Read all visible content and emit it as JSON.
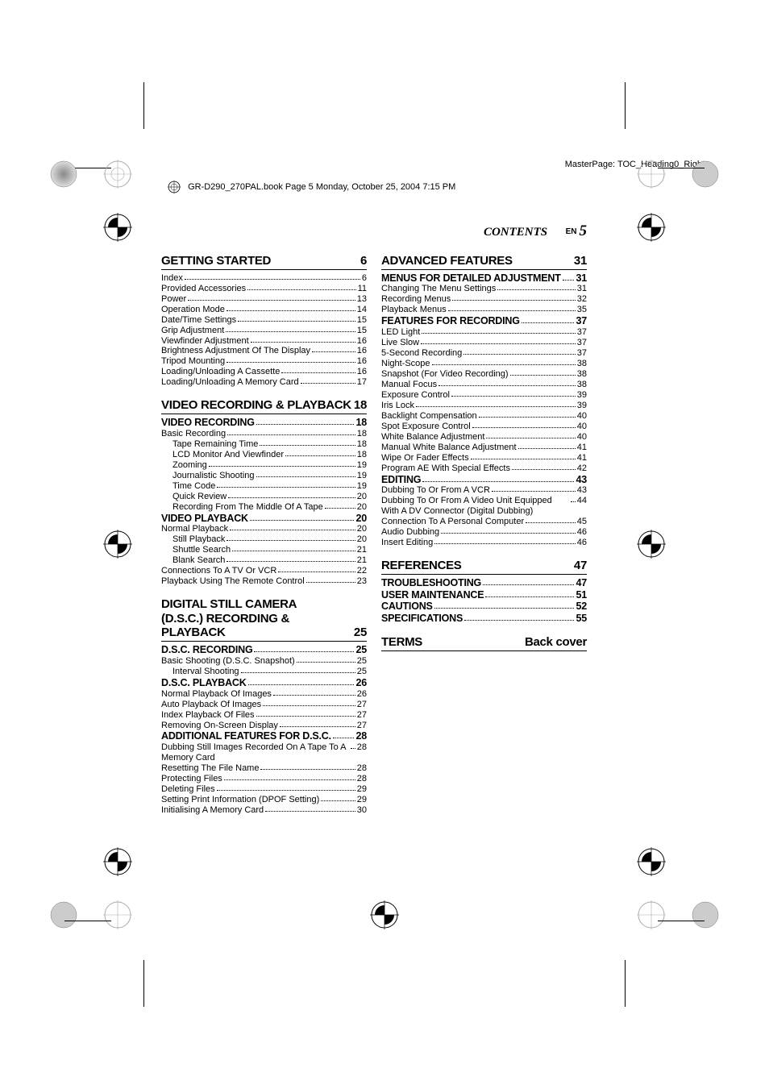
{
  "meta": {
    "masterpage": "MasterPage: TOC_Heading0_Right",
    "book_info": "GR-D290_270PAL.book  Page 5  Monday, October 25, 2004  7:15 PM"
  },
  "header": {
    "contents_label": "CONTENTS",
    "en": "EN",
    "page": "5"
  },
  "left": {
    "sections": [
      {
        "title": "GETTING STARTED",
        "page": "6",
        "subs": [],
        "entries": [
          {
            "label": "Index",
            "page": "6",
            "indent": 0
          },
          {
            "label": "Provided Accessories",
            "page": "11",
            "indent": 0
          },
          {
            "label": "Power",
            "page": "13",
            "indent": 0
          },
          {
            "label": "Operation Mode",
            "page": "14",
            "indent": 0
          },
          {
            "label": "Date/Time Settings",
            "page": "15",
            "indent": 0
          },
          {
            "label": "Grip Adjustment",
            "page": "15",
            "indent": 0
          },
          {
            "label": "Viewfinder Adjustment",
            "page": "16",
            "indent": 0
          },
          {
            "label": "Brightness Adjustment Of The Display",
            "page": "16",
            "indent": 0
          },
          {
            "label": "Tripod Mounting",
            "page": "16",
            "indent": 0
          },
          {
            "label": "Loading/Unloading A Cassette",
            "page": "16",
            "indent": 0
          },
          {
            "label": "Loading/Unloading A Memory Card",
            "page": "17",
            "indent": 0
          }
        ]
      },
      {
        "title": "VIDEO RECORDING & PLAYBACK",
        "page": "18",
        "groups": [
          {
            "sub": {
              "label": "VIDEO RECORDING",
              "page": "18"
            },
            "entries": [
              {
                "label": "Basic Recording",
                "page": "18",
                "indent": 0
              },
              {
                "label": "Tape Remaining Time",
                "page": "18",
                "indent": 1
              },
              {
                "label": "LCD Monitor And Viewfinder",
                "page": "18",
                "indent": 1
              },
              {
                "label": "Zooming",
                "page": "19",
                "indent": 1
              },
              {
                "label": "Journalistic Shooting",
                "page": "19",
                "indent": 1
              },
              {
                "label": "Time Code",
                "page": "19",
                "indent": 1
              },
              {
                "label": "Quick Review",
                "page": "20",
                "indent": 1
              },
              {
                "label": "Recording From The Middle Of A Tape",
                "page": "20",
                "indent": 1
              }
            ]
          },
          {
            "sub": {
              "label": "VIDEO PLAYBACK",
              "page": "20"
            },
            "entries": [
              {
                "label": "Normal Playback",
                "page": "20",
                "indent": 0
              },
              {
                "label": "Still Playback",
                "page": "20",
                "indent": 1
              },
              {
                "label": "Shuttle Search",
                "page": "21",
                "indent": 1
              },
              {
                "label": "Blank Search",
                "page": "21",
                "indent": 1
              },
              {
                "label": "Connections To A TV Or VCR",
                "page": "22",
                "indent": 0
              },
              {
                "label": "Playback Using The Remote Control",
                "page": "23",
                "indent": 0
              }
            ]
          }
        ]
      },
      {
        "title": "DIGITAL STILL CAMERA (D.S.C.) RECORDING & PLAYBACK",
        "page": "25",
        "multiline": true,
        "groups": [
          {
            "sub": {
              "label": "D.S.C. RECORDING",
              "page": "25"
            },
            "entries": [
              {
                "label": "Basic Shooting (D.S.C. Snapshot)",
                "page": "25",
                "indent": 0
              },
              {
                "label": "Interval Shooting",
                "page": "25",
                "indent": 1
              }
            ]
          },
          {
            "sub": {
              "label": "D.S.C. PLAYBACK",
              "page": "26"
            },
            "entries": [
              {
                "label": "Normal Playback Of Images",
                "page": "26",
                "indent": 0
              },
              {
                "label": "Auto Playback Of Images",
                "page": "27",
                "indent": 0
              },
              {
                "label": "Index Playback Of Files",
                "page": "27",
                "indent": 0
              },
              {
                "label": "Removing On-Screen Display",
                "page": "27",
                "indent": 0
              }
            ]
          },
          {
            "sub": {
              "label": "ADDITIONAL FEATURES FOR D.S.C.",
              "page": "28"
            },
            "entries": [
              {
                "label": "Dubbing Still Images Recorded On A Tape To A Memory Card",
                "page": "28",
                "indent": 0,
                "wrap": true
              },
              {
                "label": "Resetting The File Name",
                "page": "28",
                "indent": 0
              },
              {
                "label": "Protecting Files",
                "page": "28",
                "indent": 0
              },
              {
                "label": "Deleting Files",
                "page": "29",
                "indent": 0
              },
              {
                "label": "Setting Print Information (DPOF Setting)",
                "page": "29",
                "indent": 0
              },
              {
                "label": "Initialising A Memory Card",
                "page": "30",
                "indent": 0
              }
            ]
          }
        ]
      }
    ]
  },
  "right": {
    "sections": [
      {
        "title": "ADVANCED FEATURES",
        "page": "31",
        "groups": [
          {
            "sub": {
              "label": "MENUS FOR DETAILED ADJUSTMENT",
              "page": "31"
            },
            "entries": [
              {
                "label": "Changing The Menu Settings",
                "page": "31",
                "indent": 0
              },
              {
                "label": "Recording Menus",
                "page": "32",
                "indent": 0
              },
              {
                "label": "Playback Menus",
                "page": "35",
                "indent": 0
              }
            ]
          },
          {
            "sub": {
              "label": "FEATURES FOR RECORDING",
              "page": "37"
            },
            "entries": [
              {
                "label": "LED Light",
                "page": "37",
                "indent": 0
              },
              {
                "label": "Live Slow",
                "page": "37",
                "indent": 0
              },
              {
                "label": "5-Second Recording",
                "page": "37",
                "indent": 0
              },
              {
                "label": "Night-Scope",
                "page": "38",
                "indent": 0
              },
              {
                "label": "Snapshot (For Video Recording)",
                "page": "38",
                "indent": 0
              },
              {
                "label": "Manual Focus",
                "page": "38",
                "indent": 0
              },
              {
                "label": "Exposure Control",
                "page": "39",
                "indent": 0
              },
              {
                "label": "Iris Lock",
                "page": "39",
                "indent": 0
              },
              {
                "label": "Backlight Compensation",
                "page": "40",
                "indent": 0
              },
              {
                "label": "Spot Exposure Control",
                "page": "40",
                "indent": 0
              },
              {
                "label": "White Balance Adjustment",
                "page": "40",
                "indent": 0
              },
              {
                "label": "Manual White Balance Adjustment",
                "page": "41",
                "indent": 0
              },
              {
                "label": "Wipe Or Fader Effects",
                "page": "41",
                "indent": 0
              },
              {
                "label": "Program AE With Special Effects",
                "page": "42",
                "indent": 0
              }
            ]
          },
          {
            "sub": {
              "label": "EDITING",
              "page": "43"
            },
            "entries": [
              {
                "label": "Dubbing To Or From A VCR",
                "page": "43",
                "indent": 0
              },
              {
                "label": "Dubbing To Or From A Video Unit Equipped With A DV Connector (Digital Dubbing)",
                "page": "44",
                "indent": 0,
                "wrap": true
              },
              {
                "label": "Connection To A Personal Computer",
                "page": "45",
                "indent": 0
              },
              {
                "label": "Audio Dubbing",
                "page": "46",
                "indent": 0
              },
              {
                "label": "Insert Editing",
                "page": "46",
                "indent": 0
              }
            ]
          }
        ]
      },
      {
        "title": "REFERENCES",
        "page": "47",
        "groups": [
          {
            "sub": null,
            "entries_bold": [
              {
                "label": "TROUBLESHOOTING",
                "page": "47"
              },
              {
                "label": "USER MAINTENANCE",
                "page": "51"
              },
              {
                "label": "CAUTIONS",
                "page": "52"
              },
              {
                "label": "SPECIFICATIONS",
                "page": "55"
              }
            ]
          }
        ]
      }
    ],
    "terms": {
      "label": "TERMS",
      "page": "Back cover"
    }
  }
}
